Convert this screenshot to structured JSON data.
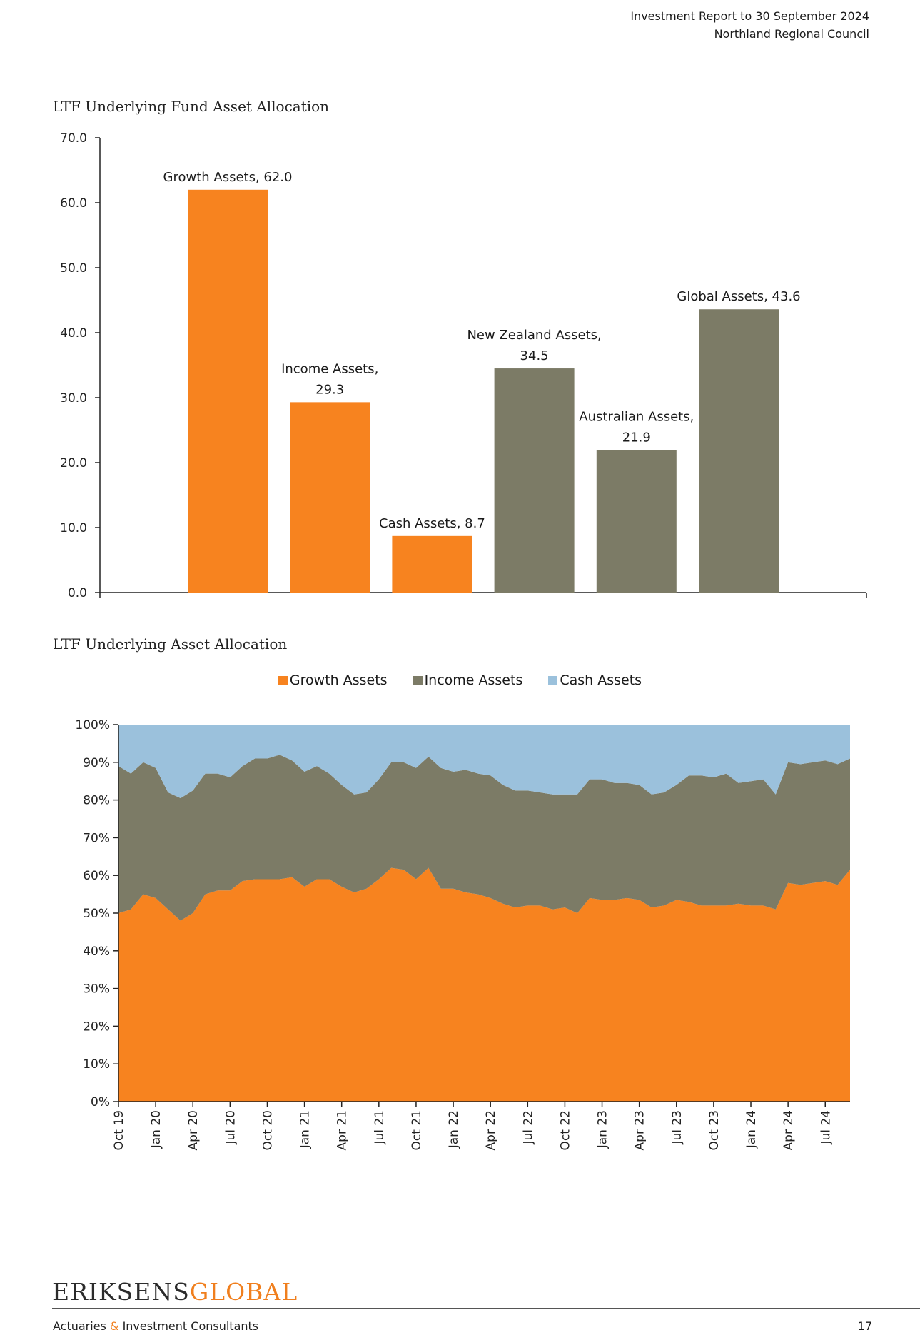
{
  "header": {
    "line1": "Investment Report to 30 September 2024",
    "line2": "Northland Regional Council"
  },
  "footer": {
    "logo_part1": "ERIKSENS",
    "logo_part2": "GLOBAL",
    "tagline_part1": "Actuaries",
    "tagline_amp": "&",
    "tagline_part2": "Investment Consultants",
    "page_number": "17"
  },
  "colors": {
    "growth": "#f7831f",
    "income": "#7c7b66",
    "cash": "#9bc1dc",
    "axis": "#222222"
  },
  "chart_data": [
    {
      "type": "bar",
      "title": "LTF Underlying Fund Asset Allocation",
      "ylim": [
        0,
        70
      ],
      "y_ticks": [
        "0.0",
        "10.0",
        "20.0",
        "30.0",
        "40.0",
        "50.0",
        "60.0",
        "70.0"
      ],
      "grid": false,
      "bars": [
        {
          "label_line1": "Growth Assets, 62.0",
          "label_line2": "",
          "value": 62.0,
          "group": "growth"
        },
        {
          "label_line1": "Income Assets,",
          "label_line2": "29.3",
          "value": 29.3,
          "group": "growth"
        },
        {
          "label_line1": "Cash Assets, 8.7",
          "label_line2": "",
          "value": 8.7,
          "group": "growth"
        },
        {
          "label_line1": "New Zealand Assets,",
          "label_line2": "34.5",
          "value": 34.5,
          "group": "income"
        },
        {
          "label_line1": "Australian Assets,",
          "label_line2": "21.9",
          "value": 21.9,
          "group": "income"
        },
        {
          "label_line1": "Global Assets, 43.6",
          "label_line2": "",
          "value": 43.6,
          "group": "income"
        }
      ]
    },
    {
      "type": "area",
      "stacked": true,
      "title": "LTF Underlying Asset Allocation",
      "legend_position": "top",
      "ylim": [
        0,
        100
      ],
      "y_ticks": [
        "0%",
        "10%",
        "20%",
        "30%",
        "40%",
        "50%",
        "60%",
        "70%",
        "80%",
        "90%",
        "100%"
      ],
      "x_tick_labels": [
        "Oct 19",
        "Jan 20",
        "Apr 20",
        "Jul 20",
        "Oct 20",
        "Jan 21",
        "Apr 21",
        "Jul 21",
        "Oct 21",
        "Jan 22",
        "Apr 22",
        "Jul 22",
        "Oct 22",
        "Jan 23",
        "Apr 23",
        "Jul 23",
        "Oct 23",
        "Jan 24",
        "Apr 24",
        "Jul 24"
      ],
      "x_months": [
        "Oct 19",
        "Nov 19",
        "Dec 19",
        "Jan 20",
        "Feb 20",
        "Mar 20",
        "Apr 20",
        "May 20",
        "Jun 20",
        "Jul 20",
        "Aug 20",
        "Sep 20",
        "Oct 20",
        "Nov 20",
        "Dec 20",
        "Jan 21",
        "Feb 21",
        "Mar 21",
        "Apr 21",
        "May 21",
        "Jun 21",
        "Jul 21",
        "Aug 21",
        "Sep 21",
        "Oct 21",
        "Nov 21",
        "Dec 21",
        "Jan 22",
        "Feb 22",
        "Mar 22",
        "Apr 22",
        "May 22",
        "Jun 22",
        "Jul 22",
        "Aug 22",
        "Sep 22",
        "Oct 22",
        "Nov 22",
        "Dec 22",
        "Jan 23",
        "Feb 23",
        "Mar 23",
        "Apr 23",
        "May 23",
        "Jun 23",
        "Jul 23",
        "Aug 23",
        "Sep 23",
        "Oct 23",
        "Nov 23",
        "Dec 23",
        "Jan 24",
        "Feb 24",
        "Mar 24",
        "Apr 24",
        "May 24",
        "Jun 24",
        "Jul 24",
        "Aug 24",
        "Sep 24"
      ],
      "series": [
        {
          "name": "Growth Assets",
          "color_key": "growth",
          "values": [
            50,
            51,
            55,
            54,
            51,
            48,
            50,
            55,
            56,
            56,
            58.5,
            59,
            59,
            59,
            59.5,
            57,
            59,
            59,
            57,
            55.5,
            56.5,
            59,
            62,
            61.5,
            59,
            62,
            56.5,
            56.5,
            55.5,
            55,
            54,
            52.5,
            51.5,
            52,
            52,
            51,
            51.5,
            50,
            54,
            53.5,
            53.5,
            54,
            53.5,
            51.5,
            52,
            53.5,
            53,
            52,
            52,
            52,
            52.5,
            52,
            52,
            51,
            58,
            57.5,
            58,
            58.5,
            57.5,
            61.5
          ]
        },
        {
          "name": "Income Assets",
          "color_key": "income",
          "values": [
            39,
            36,
            35,
            34.5,
            31,
            32.5,
            32.5,
            32,
            31,
            30,
            30.5,
            32,
            32,
            33,
            31,
            30.5,
            30,
            28,
            27,
            26,
            25.5,
            26.5,
            28,
            28.5,
            29.5,
            29.5,
            32,
            31,
            32.5,
            32,
            32.5,
            31.5,
            31,
            30.5,
            30,
            30.5,
            30,
            31.5,
            31.5,
            32,
            31,
            30.5,
            30.5,
            30,
            30,
            30.5,
            33.5,
            34.5,
            34,
            35,
            32,
            33,
            33.5,
            30.5,
            32,
            32,
            32,
            32,
            32,
            29.5
          ]
        },
        {
          "name": "Cash Assets",
          "color_key": "cash",
          "values": [
            11,
            13,
            10,
            11.5,
            18,
            19.5,
            17.5,
            13,
            13,
            14,
            11,
            9,
            9,
            8,
            9.5,
            12.5,
            11,
            13,
            16,
            18.5,
            18,
            14.5,
            10,
            10,
            11.5,
            8.5,
            11.5,
            12.5,
            12,
            13,
            13.5,
            16,
            17.5,
            17.5,
            18,
            18.5,
            18.5,
            18.5,
            14.5,
            14.5,
            15.5,
            15.5,
            16,
            18.5,
            18,
            16,
            13.5,
            13.5,
            14,
            13,
            15.5,
            15,
            14.5,
            18.5,
            10,
            10.5,
            10,
            9.5,
            10.5,
            9
          ]
        }
      ]
    }
  ]
}
